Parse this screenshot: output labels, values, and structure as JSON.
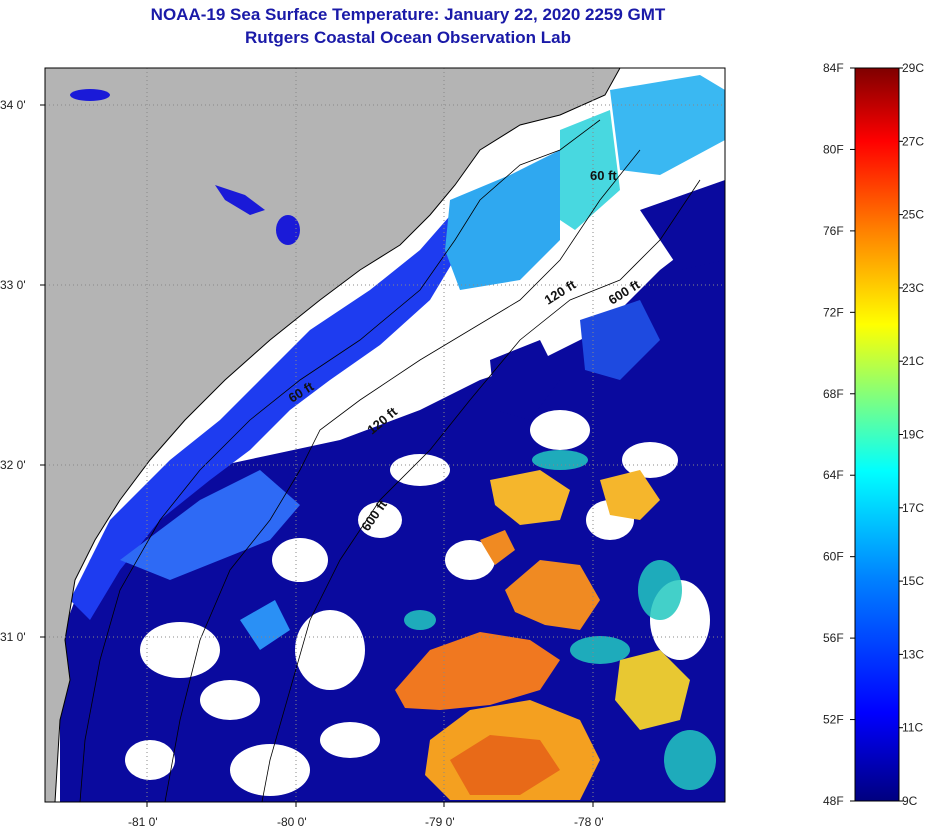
{
  "header": {
    "title": "NOAA-19 Sea Surface Temperature:  January 22, 2020 2259 GMT",
    "subtitle": "Rutgers Coastal Ocean Observation Lab"
  },
  "map": {
    "lat_labels": [
      "34 0'",
      "33 0'",
      "32 0'",
      "31 0'"
    ],
    "lon_labels": [
      "-81 0'",
      "-80 0'",
      "-79 0'",
      "-78 0'"
    ],
    "contour_labels": [
      "60 ft",
      "120 ft",
      "600 ft",
      "60 ft",
      "120 ft",
      "600 ft"
    ]
  },
  "colorbar": {
    "fahrenheit": [
      "84F",
      "80F",
      "76F",
      "72F",
      "68F",
      "64F",
      "60F",
      "56F",
      "52F",
      "48F"
    ],
    "celsius": [
      "29C",
      "27C",
      "25C",
      "23C",
      "21C",
      "19C",
      "17C",
      "15C",
      "13C",
      "11C",
      "9C"
    ],
    "stops": [
      "#00007f",
      "#0000ff",
      "#007fff",
      "#00ffff",
      "#7fff7f",
      "#ffff00",
      "#ff7f00",
      "#ff0000",
      "#7f0000"
    ]
  },
  "colors": {
    "land": "#b4b4b4",
    "cloud": "#ffffff",
    "cold": "#0a0a9e",
    "title": "#1a1aa8"
  }
}
